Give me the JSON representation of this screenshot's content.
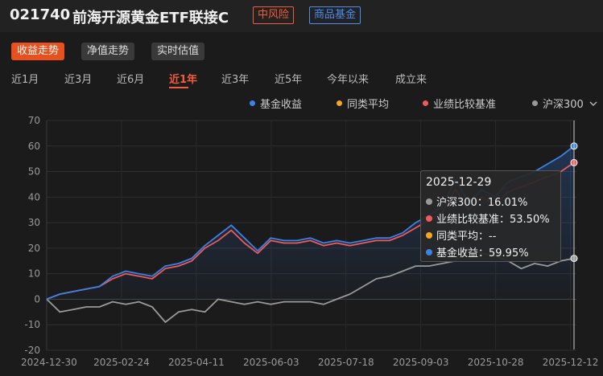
{
  "header": {
    "code": "021740",
    "name": "前海开源黄金ETF联接C",
    "risk_badge": "中风险",
    "category_badge": "商品基金"
  },
  "tabs": [
    "收益走势",
    "净值走势",
    "实时估值"
  ],
  "periods": [
    "近1月",
    "近3月",
    "近6月",
    "近1年",
    "近3年",
    "近5年",
    "今年以来",
    "成立来"
  ],
  "active_period": "近1年",
  "legend": [
    {
      "name": "基金收益",
      "color": "#3b82e6"
    },
    {
      "name": "同类平均",
      "color": "#f5a623"
    },
    {
      "name": "业绩比较基准",
      "color": "#f05a5a"
    },
    {
      "name": "沪深300",
      "color": "#999999",
      "icon": "chevron-down-icon"
    }
  ],
  "tooltip": {
    "date": "2025-12-29",
    "rows": [
      {
        "label": "沪深300：16.01%",
        "color": "#999999"
      },
      {
        "label": "业绩比较基准：53.50%",
        "color": "#f05a5a"
      },
      {
        "label": "同类平均：--",
        "color": "#f5a623"
      },
      {
        "label": "基金收益：59.95%",
        "color": "#3b82e6"
      }
    ]
  },
  "chart_data": {
    "type": "line",
    "ylim": [
      -20,
      70
    ],
    "yticks": [
      70,
      60,
      50,
      40,
      30,
      20,
      10,
      0,
      -10,
      -20
    ],
    "xticks": [
      "2024-12-30",
      "2025-02-24",
      "2025-04-11",
      "2025-06-03",
      "2025-07-18",
      "2025-09-03",
      "2025-10-28",
      "2025-12-12"
    ],
    "grid": true,
    "series": [
      {
        "name": "基金收益",
        "color": "#3b82e6",
        "values": [
          0,
          2,
          3,
          4,
          5,
          9,
          11,
          10,
          9,
          13,
          14,
          16,
          21,
          25,
          29,
          24,
          19,
          24,
          23,
          23,
          24,
          22,
          23,
          22,
          23,
          24,
          24,
          26,
          30,
          33,
          36,
          47,
          38,
          43,
          40,
          46,
          48,
          50,
          53,
          56,
          60
        ]
      },
      {
        "name": "业绩比较基准",
        "color": "#f05a5a",
        "values": [
          0,
          2,
          3,
          4,
          5,
          8,
          10,
          9,
          8,
          12,
          13,
          15,
          20,
          23,
          27,
          22,
          18,
          23,
          22,
          22,
          23,
          21,
          22,
          21,
          22,
          23,
          23,
          25,
          28,
          31,
          34,
          43,
          35,
          40,
          37,
          42,
          44,
          46,
          48,
          50,
          53.5
        ]
      },
      {
        "name": "沪深300",
        "color": "#999999",
        "values": [
          0,
          -5,
          -4,
          -3,
          -3,
          -1,
          -2,
          -1,
          -3,
          -9,
          -5,
          -4,
          -5,
          0,
          -1,
          -2,
          -1,
          -2,
          -1,
          -1,
          -1,
          -2,
          0,
          2,
          5,
          8,
          9,
          11,
          13,
          13,
          14,
          15,
          20,
          18,
          17,
          15,
          12,
          14,
          13,
          15,
          16
        ]
      }
    ]
  }
}
